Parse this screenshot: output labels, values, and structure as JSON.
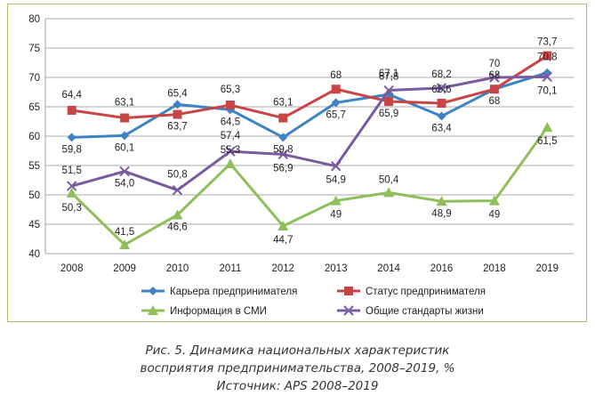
{
  "colors": {
    "Карьера предпринимателя": "#3d83c4",
    "Статус предпринимателя": "#c94444",
    "Информация в СМИ": "#8fbf5a",
    "Общие стандарты жизни": "#7a5a9e",
    "frame": "#a9c46a"
  },
  "chart_data": {
    "type": "line",
    "title": "",
    "xlabel": "",
    "ylabel": "",
    "ylim": [
      40,
      80
    ],
    "yticks": [
      40,
      45,
      50,
      55,
      60,
      65,
      70,
      75,
      80
    ],
    "categories": [
      "2008",
      "2009",
      "2010",
      "2011",
      "2012",
      "2013",
      "2014",
      "2016",
      "2018",
      "2019"
    ],
    "grid": true,
    "legend_position": "bottom",
    "series": [
      {
        "name": "Карьера предпринимателя",
        "marker": "diamond",
        "values": [
          59.8,
          60.1,
          65.4,
          64.5,
          59.8,
          65.7,
          67.1,
          63.4,
          68,
          70.8
        ],
        "labels": [
          "59,8",
          "60,1",
          "65,4",
          "64,5",
          "59,8",
          "65,7",
          "67,1",
          "63,4",
          "68",
          "70,8"
        ]
      },
      {
        "name": "Статус предпринимателя",
        "marker": "square",
        "values": [
          64.4,
          63.1,
          63.7,
          65.3,
          63.1,
          68,
          65.9,
          65.6,
          68,
          73.7
        ],
        "labels": [
          "64,4",
          "63,1",
          "63,7",
          "65,3",
          "63,1",
          "68",
          "65,9",
          "65,6",
          "68",
          "73,7"
        ]
      },
      {
        "name": "Информация в СМИ",
        "marker": "triangle",
        "values": [
          50.3,
          41.5,
          46.6,
          55.3,
          44.7,
          49,
          50.4,
          48.9,
          49,
          61.5
        ],
        "labels": [
          "50,3",
          "41,5",
          "46,6",
          "55,3",
          "44,7",
          "49",
          "50,4",
          "48,9",
          "49",
          "61,5"
        ]
      },
      {
        "name": "Общие стандарты жизни",
        "marker": "x",
        "values": [
          51.5,
          54.0,
          50.8,
          57.4,
          56.9,
          54.9,
          67.8,
          68.2,
          70,
          70.1
        ],
        "labels": [
          "51,5",
          "54,0",
          "50,8",
          "57,4",
          "56,9",
          "54,9",
          "67,8",
          "68,2",
          "70",
          "70,1"
        ]
      }
    ]
  },
  "caption": {
    "line1": "Рис. 5. Динамика национальных характеристик",
    "line2": "восприятия предпринимательства, 2008–2019, %",
    "line3": "Источник: APS 2008–2019"
  }
}
